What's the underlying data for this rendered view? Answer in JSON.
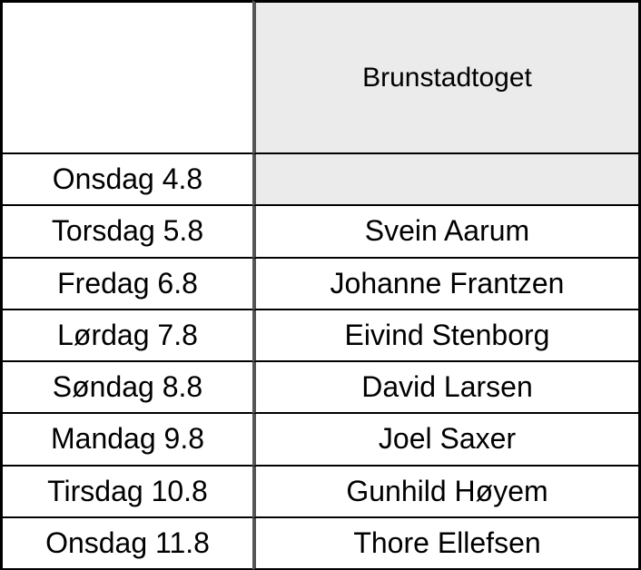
{
  "header": {
    "title": "Brunstadtoget"
  },
  "rows": [
    [
      "Onsdag 4.8"
    ],
    [
      "Torsdag 5.8",
      "Svein Aarum"
    ],
    [
      "Fredag 6.8",
      "Johanne Frantzen"
    ],
    [
      "Lørdag 7.8",
      "Eivind Stenborg"
    ],
    [
      "Søndag 8.8",
      "David Larsen"
    ],
    [
      "Mandag 9.8",
      "Joel Saxer"
    ],
    [
      "Tirsdag 10.8",
      "Gunhild Høyem"
    ],
    [
      "Onsdag 11.8",
      "Thore Ellefsen"
    ]
  ]
}
